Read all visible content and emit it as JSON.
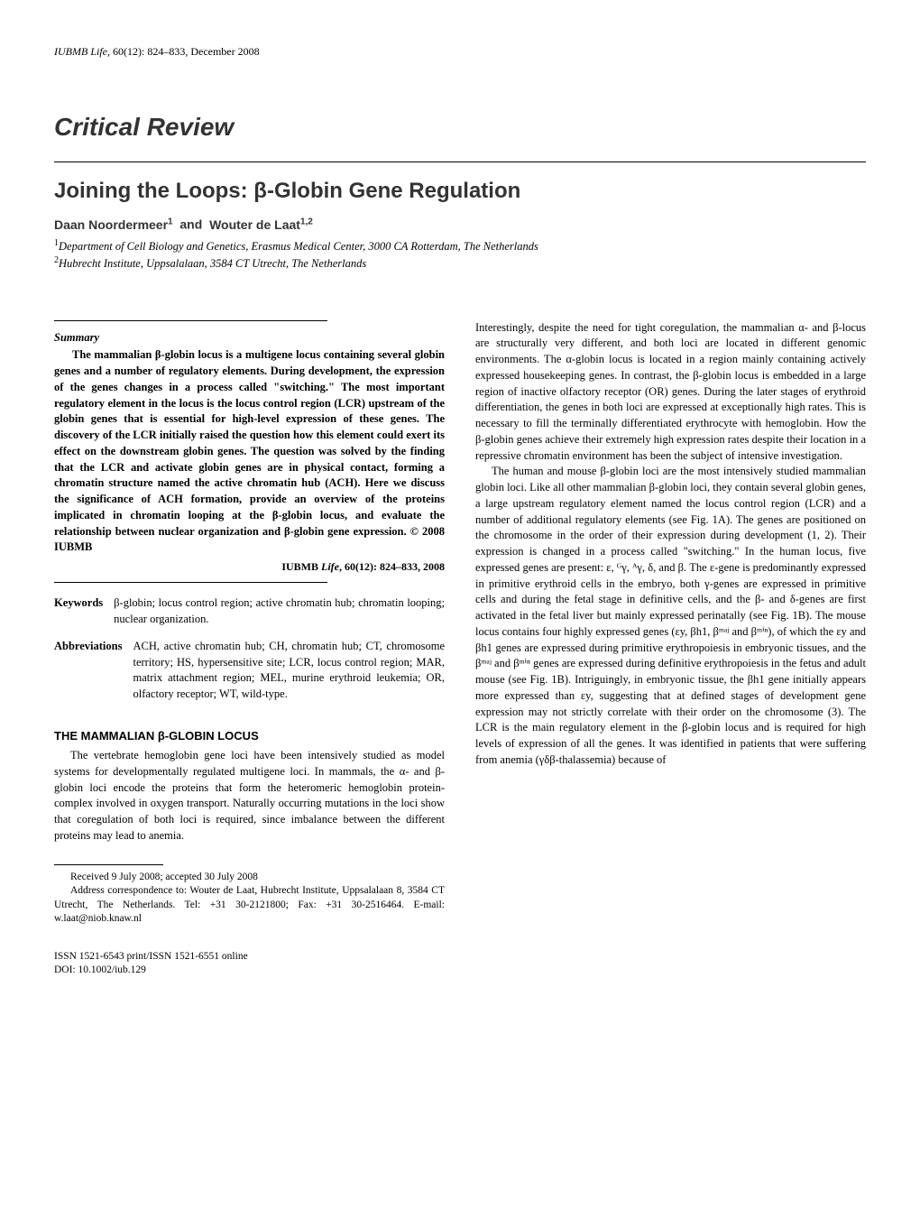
{
  "running_head": {
    "journal_abbrev": "IUBMB",
    "journal_word": "Life",
    "issue": ", 60(12): 824–833, December 2008"
  },
  "critical_review_label": "Critical Review",
  "title": "Joining the Loops: β-Globin Gene Regulation",
  "authors_html": "Daan Noordermeer¹  and  Wouter de Laat¹,²",
  "affiliations": {
    "line1_sup": "1",
    "line1": "Department of Cell Biology and Genetics, Erasmus Medical Center, 3000 CA Rotterdam, The Netherlands",
    "line2_sup": "2",
    "line2": "Hubrecht Institute, Uppsalalaan, 3584 CT Utrecht, The Netherlands"
  },
  "summary": {
    "heading": "Summary",
    "body": "The mammalian β-globin locus is a multigene locus containing several globin genes and a number of regulatory elements. During development, the expression of the genes changes in a process called \"switching.\" The most important regulatory element in the locus is the locus control region (LCR) upstream of the globin genes that is essential for high-level expression of these genes. The discovery of the LCR initially raised the question how this element could exert its effect on the downstream globin genes. The question was solved by the finding that the LCR and activate globin genes are in physical contact, forming a chromatin structure named the active chromatin hub (ACH). Here we discuss the significance of ACH formation, provide an overview of the proteins implicated in chromatin looping at the β-globin locus, and evaluate the relationship between nuclear organization and β-globin gene expression.  © 2008 IUBMB",
    "journal_line_prefix": "IUBMB ",
    "journal_line_name": "Life",
    "journal_line_suffix": ", 60(12): 824–833, 2008"
  },
  "keywords": {
    "label": "Keywords",
    "text": "β-globin; locus control region; active chromatin hub; chromatin looping; nuclear organization."
  },
  "abbreviations": {
    "label": "Abbreviations",
    "text": "ACH, active chromatin hub; CH, chromatin hub; CT, chromosome territory; HS, hypersensitive site; LCR, locus control region; MAR, matrix attachment region; MEL, murine erythroid leukemia; OR, olfactory receptor; WT, wild-type."
  },
  "section1": {
    "heading": "THE MAMMALIAN β-GLOBIN LOCUS",
    "para": "The vertebrate hemoglobin gene loci have been intensively studied as model systems for developmentally regulated multigene loci. In mammals, the α- and β-globin loci encode the proteins that form the heteromeric hemoglobin protein-complex involved in oxygen transport. Naturally occurring mutations in the loci show that coregulation of both loci is required, since imbalance between the different proteins may lead to anemia."
  },
  "footnotes": {
    "received": "Received 9 July 2008; accepted 30 July 2008",
    "correspondence": "Address correspondence to: Wouter de Laat, Hubrecht Institute, Uppsalalaan 8, 3584 CT Utrecht, The Netherlands. Tel: +31 30-2121800; Fax: +31 30-2516464. E-mail: w.laat@niob.knaw.nl"
  },
  "right_col": {
    "para1": "Interestingly, despite the need for tight coregulation, the mammalian α- and β-locus are structurally very different, and both loci are located in different genomic environments. The α-globin locus is located in a region mainly containing actively expressed housekeeping genes. In contrast, the β-globin locus is embedded in a large region of inactive olfactory receptor (OR) genes. During the later stages of erythroid differentiation, the genes in both loci are expressed at exceptionally high rates. This is necessary to fill the terminally differentiated erythrocyte with hemoglobin. How the β-globin genes achieve their extremely high expression rates despite their location in a repressive chromatin environment has been the subject of intensive investigation.",
    "para2": "The human and mouse β-globin loci are the most intensively studied mammalian globin loci. Like all other mammalian β-globin loci, they contain several globin genes, a large upstream regulatory element named the locus control region (LCR) and a number of additional regulatory elements (see Fig. 1A). The genes are positioned on the chromosome in the order of their expression during development (1, 2). Their expression is changed in a process called \"switching.\" In the human locus, five expressed genes are present: ε, ᴳγ, ᴬγ, δ, and β. The ε-gene is predominantly expressed in primitive erythroid cells in the embryo, both γ-genes are expressed in primitive cells and during the fetal stage in definitive cells, and the β- and δ-genes are first activated in the fetal liver but mainly expressed perinatally (see Fig. 1B). The mouse locus contains four highly expressed genes (εy, βh1, βᵐᵃʲ and βᵐⁱⁿ), of which the εy and βh1 genes are expressed during primitive erythropoiesis in embryonic tissues, and the βᵐᵃʲ and βᵐⁱⁿ genes are expressed during definitive erythropoiesis in the fetus and adult mouse (see Fig. 1B). Intriguingly, in embryonic tissue, the βh1 gene initially appears more expressed than εy, suggesting that at defined stages of development gene expression may not strictly correlate with their order on the chromosome (3). The LCR is the main regulatory element in the β-globin locus and is required for high levels of expression of all the genes. It was identified in patients that were suffering from anemia (γδβ-thalassemia) because of"
  },
  "footer": {
    "issn_line": "ISSN 1521-6543 print/ISSN 1521-6551 online",
    "doi_line": "DOI: 10.1002/iub.129"
  },
  "colors": {
    "text": "#000000",
    "heading": "#333333",
    "background": "#ffffff",
    "rule": "#000000"
  },
  "fontsizes": {
    "running_head": 12,
    "critical_review": 28,
    "title": 24,
    "authors": 14,
    "affiliations": 12.5,
    "body": 12.5,
    "section_heading": 13,
    "footnote": 11.5,
    "footer": 11.5
  }
}
